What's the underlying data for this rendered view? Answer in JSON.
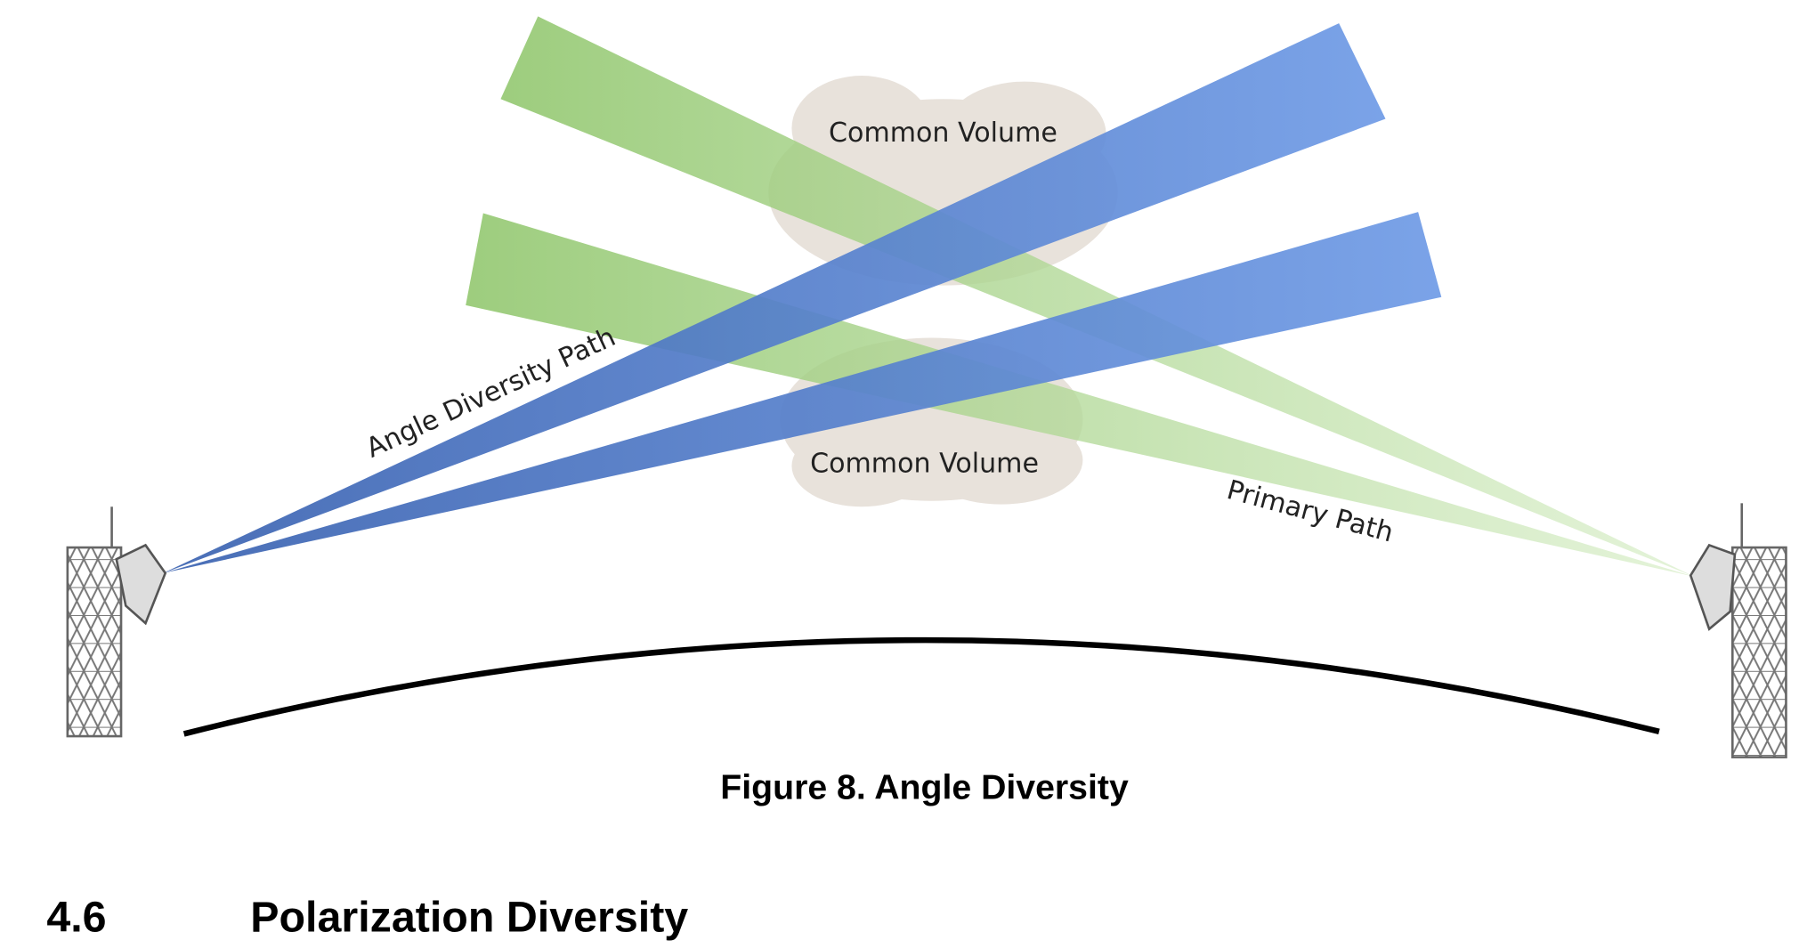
{
  "figure": {
    "labels": {
      "common_volume_top": "Common Volume",
      "common_volume_bottom": "Common Volume",
      "angle_path": "Angle Diversity Path",
      "primary_path": "Primary Path"
    },
    "caption": "Figure 8. Angle Diversity"
  },
  "section": {
    "number": "4.6",
    "title": "Polarization Diversity"
  }
}
